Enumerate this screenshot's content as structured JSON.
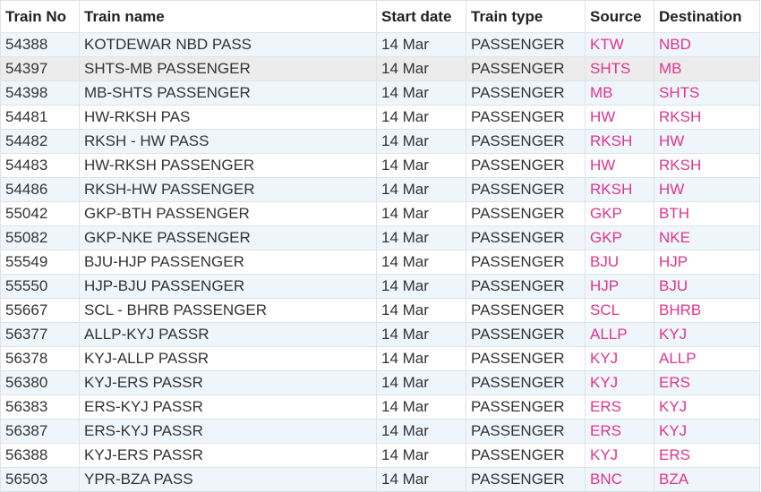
{
  "table": {
    "header": [
      "Train No",
      "Train name",
      "Start date",
      "Train type",
      "Source",
      "Destination"
    ],
    "rows": [
      [
        "54388",
        "KOTDEWAR NBD PASS",
        "14 Mar",
        "PASSENGER",
        "KTW",
        "NBD"
      ],
      [
        "54397",
        "SHTS-MB PASSENGER",
        "14 Mar",
        "PASSENGER",
        "SHTS",
        "MB"
      ],
      [
        "54398",
        "MB-SHTS PASSENGER",
        "14 Mar",
        "PASSENGER",
        "MB",
        "SHTS"
      ],
      [
        "54481",
        "HW-RKSH PAS",
        "14 Mar",
        "PASSENGER",
        "HW",
        "RKSH"
      ],
      [
        "54482",
        "RKSH - HW PASS",
        "14 Mar",
        "PASSENGER",
        "RKSH",
        "HW"
      ],
      [
        "54483",
        "HW-RKSH PASSENGER",
        "14 Mar",
        "PASSENGER",
        "HW",
        "RKSH"
      ],
      [
        "54486",
        "RKSH-HW PASSENGER",
        "14 Mar",
        "PASSENGER",
        "RKSH",
        "HW"
      ],
      [
        "55042",
        "GKP-BTH PASSENGER",
        "14 Mar",
        "PASSENGER",
        "GKP",
        "BTH"
      ],
      [
        "55082",
        "GKP-NKE PASSENGER",
        "14 Mar",
        "PASSENGER",
        "GKP",
        "NKE"
      ],
      [
        "55549",
        "BJU-HJP PASSENGER",
        "14 Mar",
        "PASSENGER",
        "BJU",
        "HJP"
      ],
      [
        "55550",
        "HJP-BJU PASSENGER",
        "14 Mar",
        "PASSENGER",
        "HJP",
        "BJU"
      ],
      [
        "55667",
        "SCL - BHRB PASSENGER",
        "14 Mar",
        "PASSENGER",
        "SCL",
        "BHRB"
      ],
      [
        "56377",
        "ALLP-KYJ PASSR",
        "14 Mar",
        "PASSENGER",
        "ALLP",
        "KYJ"
      ],
      [
        "56378",
        "KYJ-ALLP PASSR",
        "14 Mar",
        "PASSENGER",
        "KYJ",
        "ALLP"
      ],
      [
        "56380",
        "KYJ-ERS PASSR",
        "14 Mar",
        "PASSENGER",
        "KYJ",
        "ERS"
      ],
      [
        "56383",
        "ERS-KYJ PASSR",
        "14 Mar",
        "PASSENGER",
        "ERS",
        "KYJ"
      ],
      [
        "56387",
        "ERS-KYJ PASSR",
        "14 Mar",
        "PASSENGER",
        "ERS",
        "KYJ"
      ],
      [
        "56388",
        "KYJ-ERS PASSR",
        "14 Mar",
        "PASSENGER",
        "KYJ",
        "ERS"
      ],
      [
        "56503",
        "YPR-BZA PASS",
        "14 Mar",
        "PASSENGER",
        "BNC",
        "BZA"
      ]
    ]
  }
}
